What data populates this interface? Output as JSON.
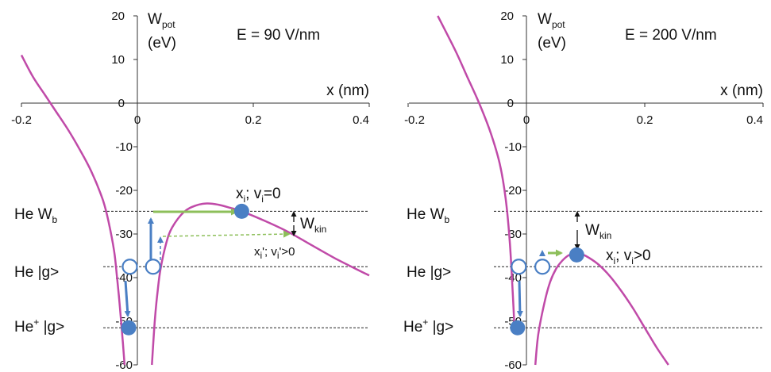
{
  "colors": {
    "curve": "#c04aa8",
    "blue_arrow": "#4a7fc4",
    "green_arrow": "#8dbf5a",
    "dot_fill": "#4a7fc4",
    "axis": "#333333",
    "dashed": "#222222"
  },
  "chart_data": [
    {
      "type": "line",
      "title": "E = 90 V/nm",
      "ylabel": {
        "main": "W",
        "sub": "pot",
        "unit": "(eV)"
      },
      "xlabel": "x (nm)",
      "xlim": [
        -0.2,
        0.4
      ],
      "ylim": [
        -60,
        20
      ],
      "xticks": [
        "-0.2",
        "0",
        "0.2",
        "0.4"
      ],
      "yticks": [
        "20",
        "10",
        "0",
        "-10",
        "-20",
        "-30",
        "-40",
        "-50",
        "-60"
      ],
      "series": [
        {
          "x": [
            -0.2,
            -0.18,
            -0.16,
            -0.14,
            -0.12,
            -0.1,
            -0.08,
            -0.06,
            -0.05,
            -0.04,
            -0.035,
            -0.03,
            -0.025,
            -0.022
          ],
          "y": [
            11,
            6,
            2,
            -2,
            -6,
            -10.5,
            -15.5,
            -22,
            -27,
            -34,
            -40,
            -47,
            -55,
            -60
          ]
        },
        {
          "x": [
            0.025,
            0.03,
            0.035,
            0.04,
            0.05,
            0.06,
            0.08,
            0.1,
            0.12,
            0.14,
            0.16,
            0.18,
            0.22,
            0.26,
            0.3,
            0.34,
            0.38,
            0.4
          ],
          "y": [
            -60,
            -50,
            -43,
            -38,
            -32,
            -28.5,
            -25,
            -23.5,
            -23,
            -23.3,
            -24,
            -24.8,
            -27,
            -29.5,
            -32.5,
            -35.5,
            -38.2,
            -39.5
          ]
        }
      ],
      "levels": [
        {
          "label_main": "He W",
          "label_sub": "b",
          "label_sup": "",
          "label_tail": "",
          "y": -24.8
        },
        {
          "label_main": "He |g>",
          "label_sub": "",
          "label_sup": "",
          "label_tail": "",
          "y": -37.5
        },
        {
          "label_main": "He",
          "label_sub": "",
          "label_sup": "+",
          "label_tail": " |g>",
          "y": -51.5
        }
      ],
      "open_circles": [
        {
          "x": -0.013,
          "y": -37.5
        },
        {
          "x": 0.027,
          "y": -37.5
        }
      ],
      "filled_circles": [
        {
          "x": -0.015,
          "y": -51.5
        },
        {
          "x": 0.18,
          "y": -24.8
        }
      ],
      "annotations": {
        "upper": {
          "main": "x",
          "sub": "i",
          "rest": "; v",
          "sub2": "i",
          "tail": "=0"
        },
        "lower": {
          "main": "x",
          "sub": "i",
          "rest": "'; v",
          "sub2": "i",
          "tail": "'>0"
        },
        "wkin": {
          "main": "W",
          "sub": "kin"
        }
      }
    },
    {
      "type": "line",
      "title": "E = 200 V/nm",
      "ylabel": {
        "main": "W",
        "sub": "pot",
        "unit": "(eV)"
      },
      "xlabel": "x (nm)",
      "xlim": [
        -0.2,
        0.4
      ],
      "ylim": [
        -60,
        20
      ],
      "xticks": [
        "-0.2",
        "0",
        "0.2",
        "0.4"
      ],
      "yticks": [
        "20",
        "10",
        "0",
        "-10",
        "-20",
        "-30",
        "-40",
        "-50",
        "-60"
      ],
      "series": [
        {
          "x": [
            -0.15,
            -0.12,
            -0.1,
            -0.08,
            -0.06,
            -0.045,
            -0.035,
            -0.028,
            -0.023,
            -0.02
          ],
          "y": [
            20,
            12,
            6,
            0,
            -7,
            -14,
            -22,
            -32,
            -44,
            -52
          ]
        },
        {
          "x": [
            0.015,
            0.02,
            0.03,
            0.04,
            0.05,
            0.06,
            0.07,
            0.08,
            0.09,
            0.1,
            0.12,
            0.14,
            0.16,
            0.18,
            0.2,
            0.22,
            0.24
          ],
          "y": [
            -60,
            -53,
            -46,
            -41,
            -38,
            -36.2,
            -35,
            -34.5,
            -34.5,
            -35,
            -36.8,
            -39.5,
            -43,
            -47,
            -51.5,
            -56,
            -60
          ]
        }
      ],
      "levels": [
        {
          "label_main": "He W",
          "label_sub": "b",
          "label_sup": "",
          "label_tail": "",
          "y": -24.8
        },
        {
          "label_main": "He |g>",
          "label_sub": "",
          "label_sup": "",
          "label_tail": "",
          "y": -37.5
        },
        {
          "label_main": "He",
          "label_sub": "",
          "label_sup": "+",
          "label_tail": " |g>",
          "y": -51.5
        }
      ],
      "open_circles": [
        {
          "x": -0.013,
          "y": -37.5
        },
        {
          "x": 0.027,
          "y": -37.5
        }
      ],
      "filled_circles": [
        {
          "x": -0.015,
          "y": -51.5
        },
        {
          "x": 0.085,
          "y": -34.8
        }
      ],
      "annotations": {
        "upper": {
          "main": "x",
          "sub": "i",
          "rest": "; v",
          "sub2": "i",
          "tail": ">0"
        },
        "wkin": {
          "main": "W",
          "sub": "kin"
        }
      }
    }
  ]
}
